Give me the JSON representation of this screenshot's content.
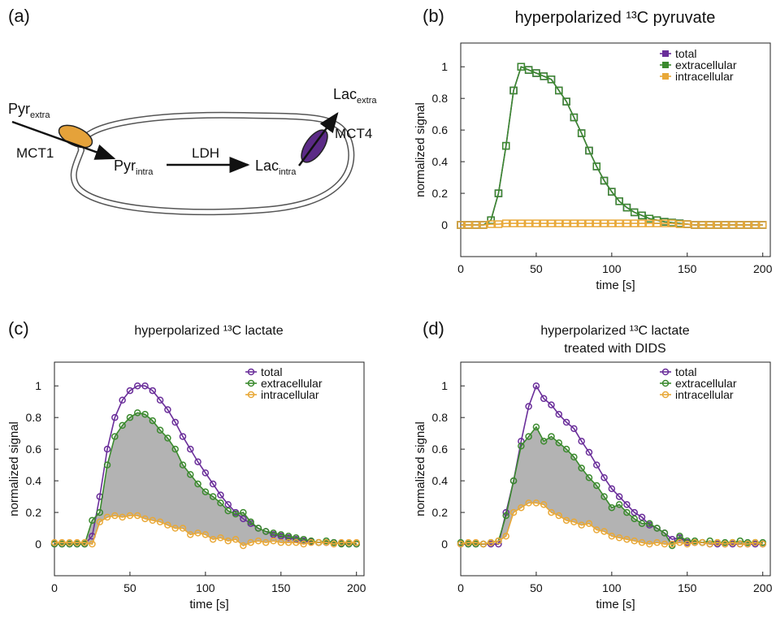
{
  "diagram": {
    "panel_label": "(a)",
    "pyr_extra": {
      "text": "Pyr",
      "sub": "extra"
    },
    "mct1": "MCT1",
    "pyr_intra": {
      "text": "Pyr",
      "sub": "intra"
    },
    "ldh": "LDH",
    "lac_intra": {
      "text": "Lac",
      "sub": "intra"
    },
    "lac_extra": {
      "text": "Lac",
      "sub": "extra"
    },
    "mct4": "MCT4"
  },
  "chart_data": [
    {
      "type": "line",
      "panel_label": "(b)",
      "title": "hyperpolarized ¹³C pyruvate",
      "marker": "square",
      "xlabel": "time [s]",
      "ylabel": "normalized signal",
      "xlim": [
        0,
        205
      ],
      "ylim": [
        -0.2,
        1.15
      ],
      "xticks": [
        0,
        50,
        100,
        150,
        200
      ],
      "yticks": [
        0,
        0.2,
        0.4,
        0.6,
        0.8,
        1
      ],
      "x": [
        0,
        5,
        10,
        15,
        20,
        25,
        30,
        35,
        40,
        45,
        50,
        55,
        60,
        65,
        70,
        75,
        80,
        85,
        90,
        95,
        100,
        105,
        110,
        115,
        120,
        125,
        130,
        135,
        140,
        145,
        150,
        155,
        160,
        165,
        170,
        175,
        180,
        185,
        190,
        195,
        200
      ],
      "series": [
        {
          "name": "total",
          "color": "#6a2e9a",
          "values": [
            0,
            0,
            0,
            0,
            0.03,
            0.2,
            0.5,
            0.85,
            1.0,
            0.98,
            0.96,
            0.94,
            0.92,
            0.85,
            0.78,
            0.68,
            0.58,
            0.47,
            0.37,
            0.28,
            0.21,
            0.15,
            0.11,
            0.08,
            0.06,
            0.04,
            0.03,
            0.02,
            0.015,
            0.01,
            0.005,
            0,
            0,
            0,
            0,
            0,
            0,
            0,
            0,
            0,
            0
          ]
        },
        {
          "name": "extracellular",
          "color": "#3b8a2e",
          "values": [
            0,
            0,
            0,
            0,
            0.03,
            0.2,
            0.5,
            0.85,
            1.0,
            0.98,
            0.96,
            0.94,
            0.92,
            0.85,
            0.78,
            0.68,
            0.58,
            0.47,
            0.37,
            0.28,
            0.21,
            0.15,
            0.11,
            0.08,
            0.06,
            0.04,
            0.03,
            0.02,
            0.015,
            0.01,
            0.005,
            0,
            0,
            0,
            0,
            0,
            0,
            0,
            0,
            0,
            0
          ]
        },
        {
          "name": "intracellular",
          "color": "#e8a838",
          "values": [
            0,
            0,
            0,
            0,
            0.005,
            0.005,
            0.01,
            0.01,
            0.01,
            0.01,
            0.01,
            0.01,
            0.01,
            0.01,
            0.01,
            0.01,
            0.01,
            0.01,
            0.01,
            0.01,
            0.01,
            0.01,
            0.01,
            0.01,
            0.01,
            0.01,
            0.01,
            0.01,
            0.01,
            0.005,
            0.005,
            0,
            0,
            0,
            0,
            0,
            0,
            0,
            0,
            0,
            0
          ]
        }
      ]
    },
    {
      "type": "line",
      "panel_label": "(c)",
      "title": "hyperpolarized ¹³C lactate",
      "marker": "circle",
      "shade_color": "#b3b3b3",
      "xlabel": "time [s]",
      "ylabel": "normalized signal",
      "xlim": [
        0,
        205
      ],
      "ylim": [
        -0.2,
        1.15
      ],
      "xticks": [
        0,
        50,
        100,
        150,
        200
      ],
      "yticks": [
        0,
        0.2,
        0.4,
        0.6,
        0.8,
        1
      ],
      "x": [
        0,
        5,
        10,
        15,
        20,
        25,
        30,
        35,
        40,
        45,
        50,
        55,
        60,
        65,
        70,
        75,
        80,
        85,
        90,
        95,
        100,
        105,
        110,
        115,
        120,
        125,
        130,
        135,
        140,
        145,
        150,
        155,
        160,
        165,
        170,
        175,
        180,
        185,
        190,
        195,
        200
      ],
      "series": [
        {
          "name": "total",
          "color": "#6a2e9a",
          "values": [
            0,
            0,
            0,
            0,
            0,
            0.05,
            0.3,
            0.6,
            0.8,
            0.91,
            0.97,
            1.0,
            1.0,
            0.97,
            0.91,
            0.85,
            0.77,
            0.68,
            0.6,
            0.52,
            0.45,
            0.38,
            0.31,
            0.25,
            0.2,
            0.16,
            0.13,
            0.1,
            0.08,
            0.06,
            0.05,
            0.04,
            0.03,
            0.02,
            0.015,
            0.01,
            0.01,
            0.01,
            0.005,
            0,
            0
          ]
        },
        {
          "name": "extracellular",
          "color": "#3b8a2e",
          "values": [
            0,
            0,
            0,
            0,
            0,
            0.15,
            0.2,
            0.5,
            0.68,
            0.75,
            0.8,
            0.83,
            0.82,
            0.78,
            0.72,
            0.67,
            0.6,
            0.5,
            0.44,
            0.38,
            0.33,
            0.3,
            0.26,
            0.21,
            0.19,
            0.2,
            0.14,
            0.1,
            0.08,
            0.07,
            0.06,
            0.05,
            0.04,
            0.03,
            0.02,
            0.01,
            0.02,
            0.01,
            0,
            0,
            0
          ]
        },
        {
          "name": "intracellular",
          "color": "#e8a838",
          "values": [
            0.01,
            0.01,
            0.01,
            0.01,
            0.01,
            0,
            0.14,
            0.17,
            0.18,
            0.17,
            0.18,
            0.18,
            0.16,
            0.15,
            0.14,
            0.12,
            0.1,
            0.1,
            0.06,
            0.07,
            0.06,
            0.03,
            0.04,
            0.02,
            0.03,
            -0.01,
            0.01,
            0.02,
            0.01,
            0.02,
            0.01,
            0.01,
            0.01,
            0,
            0.01,
            0.01,
            0.01,
            0,
            0.01,
            0.01,
            0.01
          ]
        }
      ]
    },
    {
      "type": "line",
      "panel_label": "(d)",
      "title": "hyperpolarized ¹³C lactate",
      "subtitle": "treated with DIDS",
      "marker": "circle",
      "shade_color": "#b3b3b3",
      "xlabel": "time [s]",
      "ylabel": "normalized signal",
      "xlim": [
        0,
        205
      ],
      "ylim": [
        -0.2,
        1.15
      ],
      "xticks": [
        0,
        50,
        100,
        150,
        200
      ],
      "yticks": [
        0,
        0.2,
        0.4,
        0.6,
        0.8,
        1
      ],
      "x": [
        0,
        5,
        10,
        15,
        20,
        25,
        30,
        35,
        40,
        45,
        50,
        55,
        60,
        65,
        70,
        75,
        80,
        85,
        90,
        95,
        100,
        105,
        110,
        115,
        120,
        125,
        130,
        135,
        140,
        145,
        150,
        155,
        160,
        165,
        170,
        175,
        180,
        185,
        190,
        195,
        200
      ],
      "series": [
        {
          "name": "total",
          "color": "#6a2e9a",
          "values": [
            0,
            0,
            0,
            0,
            0,
            0,
            0.2,
            0.4,
            0.65,
            0.87,
            1.0,
            0.92,
            0.88,
            0.82,
            0.77,
            0.73,
            0.65,
            0.58,
            0.5,
            0.42,
            0.35,
            0.3,
            0.25,
            0.2,
            0.17,
            0.12,
            0.1,
            0.07,
            0.03,
            0.04,
            0.01,
            0.01,
            0.01,
            0,
            0,
            0,
            0,
            0,
            0,
            0,
            0
          ]
        },
        {
          "name": "extracellular",
          "color": "#3b8a2e",
          "values": [
            0.01,
            0,
            0,
            0,
            0.01,
            0.02,
            0.18,
            0.4,
            0.62,
            0.68,
            0.74,
            0.65,
            0.68,
            0.64,
            0.6,
            0.55,
            0.48,
            0.42,
            0.37,
            0.3,
            0.23,
            0.25,
            0.2,
            0.16,
            0.13,
            0.13,
            0.1,
            0.07,
            -0.01,
            0.05,
            0.02,
            0.02,
            0.01,
            0.02,
            0.01,
            0.01,
            0.01,
            0.02,
            0.01,
            0.01,
            0.01
          ]
        },
        {
          "name": "intracellular",
          "color": "#e8a838",
          "values": [
            0,
            0.01,
            0.01,
            0,
            0.01,
            0.02,
            0.05,
            0.2,
            0.23,
            0.26,
            0.26,
            0.25,
            0.2,
            0.18,
            0.15,
            0.14,
            0.12,
            0.13,
            0.09,
            0.08,
            0.05,
            0.04,
            0.03,
            0.02,
            0.01,
            0,
            0.01,
            0,
            0,
            0.01,
            0,
            0.01,
            0.01,
            0,
            0.01,
            0,
            0.01,
            0,
            0,
            0.01,
            0
          ]
        }
      ]
    }
  ]
}
